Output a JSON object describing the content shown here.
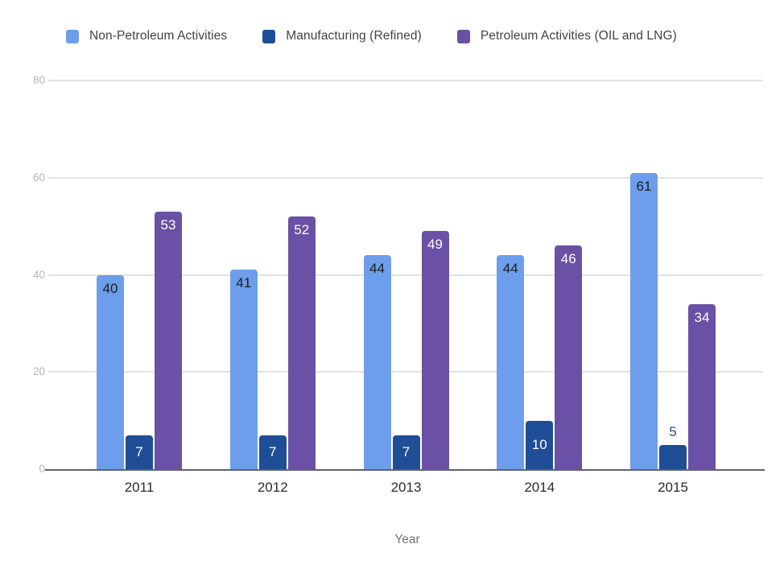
{
  "chart_data": {
    "type": "bar",
    "title": "",
    "xlabel": "Year",
    "ylabel": "",
    "categories": [
      "2011",
      "2012",
      "2013",
      "2014",
      "2015"
    ],
    "series": [
      {
        "name": "Non-Petroleum Activities",
        "color": "#6d9eeb",
        "label_color": "#1b1b1b",
        "values": [
          40,
          41,
          44,
          44,
          61
        ]
      },
      {
        "name": "Manufacturing (Refined)",
        "color": "#1f4e96",
        "label_color": "#ffffff",
        "values": [
          7,
          7,
          7,
          10,
          5
        ]
      },
      {
        "name": "Petroleum Activities (OIL and LNG)",
        "color": "#6a51a5",
        "label_color": "#ffffff",
        "values": [
          53,
          52,
          49,
          46,
          34
        ]
      }
    ],
    "ylim": [
      0,
      80
    ],
    "yticks": [
      0,
      20,
      40,
      60,
      80
    ],
    "grid": true,
    "legend_position": "top"
  },
  "colors": {
    "background": "#ffffff",
    "gridline": "#e2e2e2",
    "baseline": "#5f6368",
    "ytick_text": "#b5b5b5",
    "xtick_text": "#2b2b2b",
    "legend_text": "#424242",
    "axis_title_text": "#757575"
  }
}
